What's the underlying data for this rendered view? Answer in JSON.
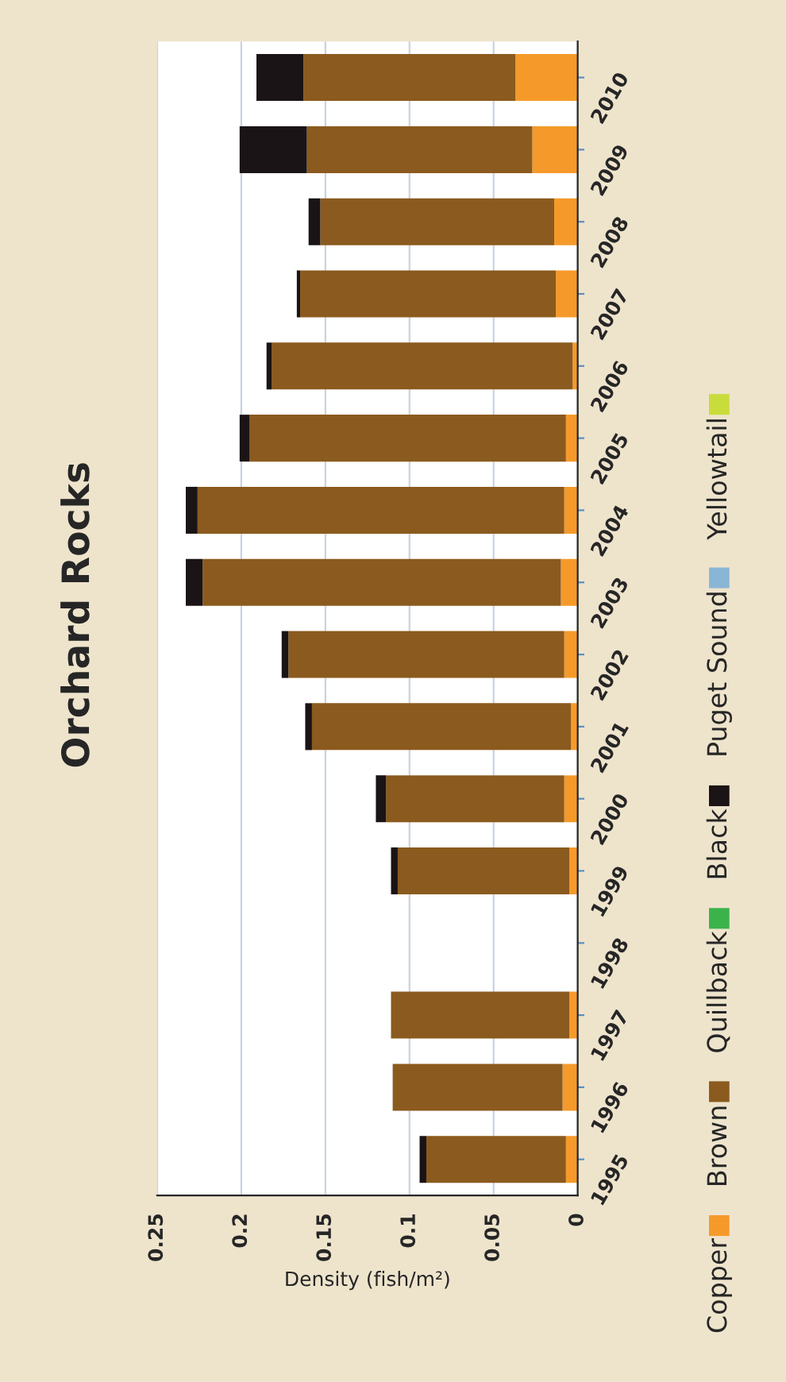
{
  "chart_data": {
    "type": "bar",
    "title": "Orchard Rocks",
    "xlabel": "Density (fish/m²)",
    "orientation": "horizontal",
    "stacked": true,
    "categories": [
      "2010",
      "2009",
      "2008",
      "2007",
      "2006",
      "2005",
      "2004",
      "2003",
      "2002",
      "2001",
      "2000",
      "1999",
      "1998",
      "1997",
      "1996",
      "1995"
    ],
    "series": [
      {
        "name": "Copper",
        "color": "#f59a2a",
        "values": [
          0.037,
          0.027,
          0.014,
          0.013,
          0.003,
          0.007,
          0.008,
          0.01,
          0.008,
          0.004,
          0.008,
          0.005,
          0,
          0.005,
          0.009,
          0.007
        ]
      },
      {
        "name": "Brown",
        "color": "#8b5a1e",
        "values": [
          0.126,
          0.134,
          0.139,
          0.152,
          0.179,
          0.188,
          0.218,
          0.213,
          0.164,
          0.154,
          0.106,
          0.102,
          0,
          0.106,
          0.101,
          0.083
        ]
      },
      {
        "name": "Quillback",
        "color": "#3bb34a",
        "values": [
          0,
          0,
          0,
          0,
          0,
          0,
          0,
          0,
          0,
          0,
          0,
          0,
          0,
          0,
          0,
          0
        ]
      },
      {
        "name": "Black",
        "color": "#1a1416",
        "values": [
          0.028,
          0.04,
          0.007,
          0.002,
          0.003,
          0.006,
          0.007,
          0.01,
          0.004,
          0.004,
          0.006,
          0.004,
          0,
          0,
          0,
          0.004
        ]
      },
      {
        "name": "Puget Sound",
        "color": "#8ab6d6",
        "values": [
          0,
          0,
          0,
          0,
          0,
          0,
          0,
          0,
          0,
          0,
          0,
          0,
          0,
          0,
          0,
          0
        ]
      },
      {
        "name": "Yellowtail",
        "color": "#c8dc3c",
        "values": [
          0,
          0,
          0,
          0,
          0,
          0,
          0,
          0,
          0,
          0,
          0,
          0,
          0,
          0,
          0,
          0
        ]
      }
    ],
    "xlim": [
      0.25,
      0
    ],
    "xticks": [
      0,
      0.05,
      0.1,
      0.15,
      0.2,
      0.25
    ],
    "grid": "x",
    "legend": "right"
  }
}
